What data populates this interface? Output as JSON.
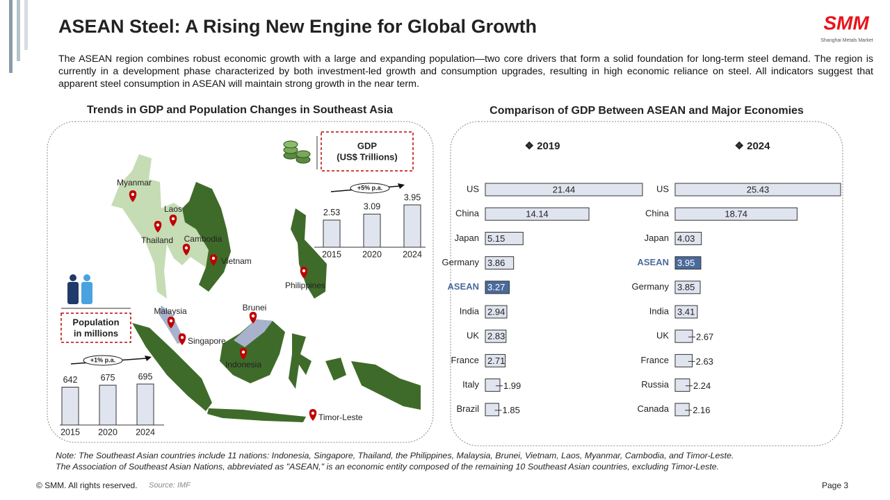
{
  "header": {
    "title": "ASEAN Steel: A Rising New Engine for Global Growth",
    "logo": "SMM",
    "logo_subtitle": "Shanghai Metals Market"
  },
  "intro": "The ASEAN region combines robust economic growth with a large and expanding population—two core drivers that form a solid foundation for long-term steel demand. The region is currently in a development phase characterized by both investment-led growth and consumption upgrades, resulting in high economic reliance on steel. All indicators suggest that apparent steel consumption in ASEAN will maintain strong growth in the near term.",
  "left_panel": {
    "title": "Trends in GDP and Population Changes in Southeast Asia",
    "map_labels": [
      "Myanmar",
      "Laos",
      "Thailand",
      "Cambodia",
      "Vietnam",
      "Philippines",
      "Malaysia",
      "Brunei",
      "Singapore",
      "Indonesia",
      "Timor-Leste"
    ]
  },
  "right_panel": {
    "title": "Comparison of GDP Between ASEAN and Major Economies"
  },
  "chart_data": [
    {
      "type": "bar",
      "title": [
        "GDP",
        "(US$ Trillions)"
      ],
      "annotation": "+5% p.a.",
      "categories": [
        "2015",
        "2020",
        "2024"
      ],
      "values": [
        2.53,
        3.09,
        3.95
      ],
      "color": "#dfe4ef"
    },
    {
      "type": "bar",
      "title": [
        "Population",
        "in millions"
      ],
      "annotation": "+1% p.a.",
      "categories": [
        "2015",
        "2020",
        "2024"
      ],
      "values": [
        642,
        675,
        695
      ],
      "color": "#dfe4ef"
    },
    {
      "type": "hbar",
      "title": "❖ 2019",
      "categories": [
        "US",
        "China",
        "Japan",
        "Germany",
        "ASEAN",
        "India",
        "UK",
        "France",
        "Italy",
        "Brazil"
      ],
      "values": [
        21.44,
        14.14,
        5.15,
        3.86,
        3.27,
        2.94,
        2.83,
        2.71,
        1.99,
        1.85
      ],
      "colors": [
        "#dfe4ef",
        "#dfe4ef",
        "#dfe4ef",
        "#dfe4ef",
        "#4a6a9c",
        "#dfe4ef",
        "#dfe4ef",
        "#dfe4ef",
        "#dfe4ef",
        "#dfe4ef"
      ]
    },
    {
      "type": "hbar",
      "title": "❖ 2024",
      "categories": [
        "US",
        "China",
        "Japan",
        "ASEAN",
        "Germany",
        "India",
        "UK",
        "France",
        "Russia",
        "Canada"
      ],
      "values": [
        25.43,
        18.74,
        4.03,
        3.95,
        3.85,
        3.41,
        2.67,
        2.63,
        2.24,
        2.16
      ],
      "colors": [
        "#dfe4ef",
        "#dfe4ef",
        "#dfe4ef",
        "#4a6a9c",
        "#dfe4ef",
        "#dfe4ef",
        "#dfe4ef",
        "#dfe4ef",
        "#dfe4ef",
        "#dfe4ef"
      ]
    }
  ],
  "note": [
    "Note: The Southeast Asian countries include 11 nations: Indonesia, Singapore, Thailand, the Philippines, Malaysia, Brunei, Vietnam, Laos, Myanmar, Cambodia, and Timor-Leste.",
    "The Association of Southeast Asian Nations, abbreviated as \"ASEAN,\" is an economic entity composed of the remaining 10 Southeast Asian countries, excluding Timor-Leste."
  ],
  "footer": {
    "copyright": "© SMM. All rights reserved.",
    "source": "Source: IMF",
    "page": "Page 3"
  }
}
